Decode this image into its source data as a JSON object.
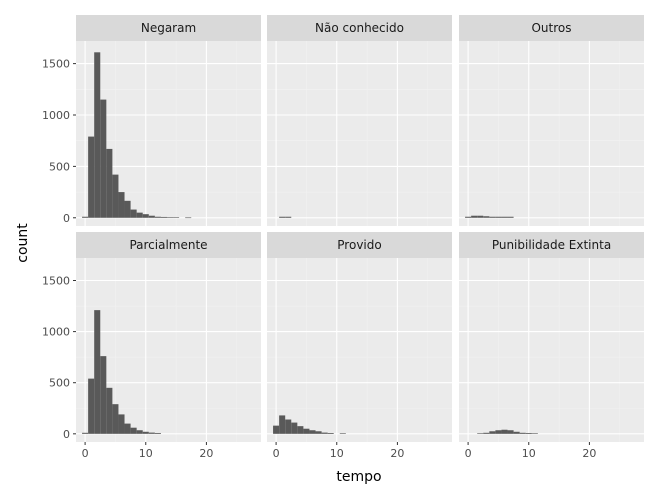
{
  "chart_data": {
    "type": "bar",
    "xlabel": "tempo",
    "ylabel": "count",
    "xlim": [
      -1.5,
      29
    ],
    "ylim": [
      -80,
      1720
    ],
    "x_ticks": [
      0,
      10,
      20
    ],
    "y_ticks": [
      0,
      500,
      1000,
      1500
    ],
    "x_tick_labels": [
      "0",
      "10",
      "20"
    ],
    "y_tick_labels": [
      "0",
      "500",
      "1000",
      "1500"
    ],
    "bin_width": 1,
    "grid": true,
    "legend": "none",
    "colors": {
      "bar": "#595959",
      "panel": "#ebebeb",
      "strip": "#d9d9d9",
      "grid_major": "#ffffff",
      "grid_minor": "#f2f2f2"
    },
    "facets": [
      {
        "label": "Negaram",
        "bins": [
          {
            "x": 0,
            "count": 10
          },
          {
            "x": 1,
            "count": 790
          },
          {
            "x": 2,
            "count": 1610
          },
          {
            "x": 3,
            "count": 1150
          },
          {
            "x": 4,
            "count": 670
          },
          {
            "x": 5,
            "count": 420
          },
          {
            "x": 6,
            "count": 250
          },
          {
            "x": 7,
            "count": 165
          },
          {
            "x": 8,
            "count": 80
          },
          {
            "x": 9,
            "count": 50
          },
          {
            "x": 10,
            "count": 35
          },
          {
            "x": 11,
            "count": 20
          },
          {
            "x": 12,
            "count": 10
          },
          {
            "x": 13,
            "count": 8
          },
          {
            "x": 14,
            "count": 6
          },
          {
            "x": 15,
            "count": 5
          },
          {
            "x": 17,
            "count": 3
          }
        ]
      },
      {
        "label": "Não conhecido",
        "bins": [
          {
            "x": 1,
            "count": 10
          },
          {
            "x": 2,
            "count": 10
          }
        ]
      },
      {
        "label": "Outros",
        "bins": [
          {
            "x": 0,
            "count": 10
          },
          {
            "x": 1,
            "count": 20
          },
          {
            "x": 2,
            "count": 20
          },
          {
            "x": 3,
            "count": 15
          },
          {
            "x": 4,
            "count": 10
          },
          {
            "x": 5,
            "count": 10
          },
          {
            "x": 6,
            "count": 10
          },
          {
            "x": 7,
            "count": 10
          }
        ]
      },
      {
        "label": "Parcialmente",
        "bins": [
          {
            "x": 0,
            "count": 10
          },
          {
            "x": 1,
            "count": 540
          },
          {
            "x": 2,
            "count": 1210
          },
          {
            "x": 3,
            "count": 760
          },
          {
            "x": 4,
            "count": 450
          },
          {
            "x": 5,
            "count": 290
          },
          {
            "x": 6,
            "count": 190
          },
          {
            "x": 7,
            "count": 100
          },
          {
            "x": 8,
            "count": 60
          },
          {
            "x": 9,
            "count": 35
          },
          {
            "x": 10,
            "count": 20
          },
          {
            "x": 11,
            "count": 12
          },
          {
            "x": 12,
            "count": 8
          }
        ]
      },
      {
        "label": "Provido",
        "bins": [
          {
            "x": 0,
            "count": 80
          },
          {
            "x": 1,
            "count": 180
          },
          {
            "x": 2,
            "count": 140
          },
          {
            "x": 3,
            "count": 110
          },
          {
            "x": 4,
            "count": 75
          },
          {
            "x": 5,
            "count": 50
          },
          {
            "x": 6,
            "count": 35
          },
          {
            "x": 7,
            "count": 25
          },
          {
            "x": 8,
            "count": 12
          },
          {
            "x": 9,
            "count": 8
          },
          {
            "x": 11,
            "count": 5
          }
        ]
      },
      {
        "label": "Punibilidade Extinta",
        "bins": [
          {
            "x": 2,
            "count": 5
          },
          {
            "x": 3,
            "count": 10
          },
          {
            "x": 4,
            "count": 25
          },
          {
            "x": 5,
            "count": 35
          },
          {
            "x": 6,
            "count": 40
          },
          {
            "x": 7,
            "count": 35
          },
          {
            "x": 8,
            "count": 20
          },
          {
            "x": 9,
            "count": 10
          },
          {
            "x": 10,
            "count": 8
          },
          {
            "x": 11,
            "count": 5
          }
        ]
      }
    ]
  }
}
